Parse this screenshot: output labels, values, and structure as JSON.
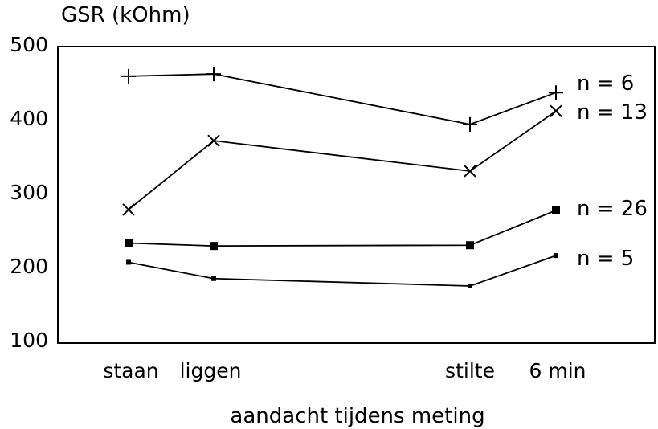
{
  "chart_data": {
    "type": "line",
    "ylabel": "GSR (kOhm)",
    "xlabel": "aandacht tijdens meting",
    "ylim": [
      100,
      500
    ],
    "yticks": [
      "100",
      "200",
      "300",
      "400",
      "500"
    ],
    "x": [
      {
        "label": "staan",
        "pos": 1.0
      },
      {
        "label": "liggen",
        "pos": 2.0
      },
      {
        "label": "stilte",
        "pos": 5.0
      },
      {
        "label": "6 min",
        "pos": 6.0
      }
    ],
    "grid": false,
    "legend": "none",
    "series": [
      {
        "name": "n = 6",
        "marker": "plus",
        "values": [
          460,
          463,
          395,
          438
        ]
      },
      {
        "name": "n = 13",
        "marker": "cross",
        "values": [
          280,
          373,
          332,
          413
        ]
      },
      {
        "name": "n = 26",
        "marker": "square",
        "values": [
          235,
          231,
          232,
          279
        ]
      },
      {
        "name": "n = 5",
        "marker": "dot",
        "values": [
          209,
          187,
          177,
          218
        ]
      }
    ]
  }
}
